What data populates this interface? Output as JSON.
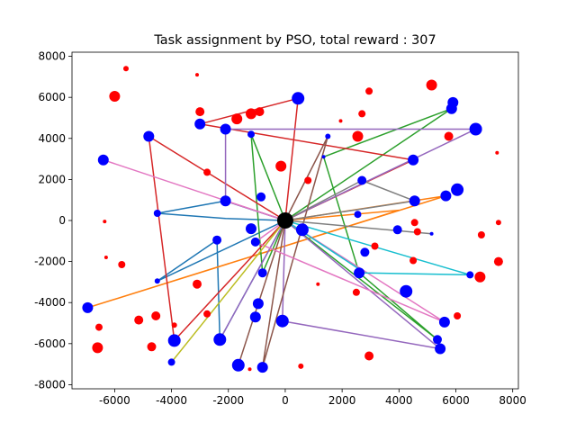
{
  "chart_data": {
    "type": "scatter",
    "title": "Task assignment by PSO, total reward : 307",
    "xlabel": "",
    "ylabel": "",
    "xlim": [
      -7500,
      8200
    ],
    "ylim": [
      -8200,
      8200
    ],
    "xticks": [
      -6000,
      -4000,
      -2000,
      0,
      2000,
      4000,
      6000,
      8000
    ],
    "yticks": [
      -8000,
      -6000,
      -4000,
      -2000,
      0,
      2000,
      4000,
      6000,
      8000
    ],
    "grid": false,
    "legend": "none",
    "depot": {
      "x": 0,
      "y": 0,
      "color": "#000000"
    },
    "series": [
      {
        "color": "#ff0000",
        "points": [
          {
            "x": -5600,
            "y": 7400,
            "r": 3
          },
          {
            "x": -6000,
            "y": 6050,
            "r": 6
          },
          {
            "x": -3100,
            "y": 7100,
            "r": 2
          },
          {
            "x": -3000,
            "y": 5300,
            "r": 5
          },
          {
            "x": -1700,
            "y": 4950,
            "r": 6
          },
          {
            "x": -1200,
            "y": 5200,
            "r": 6
          },
          {
            "x": -900,
            "y": 5300,
            "r": 5
          },
          {
            "x": 1950,
            "y": 4850,
            "r": 2
          },
          {
            "x": 2700,
            "y": 5200,
            "r": 4
          },
          {
            "x": 2950,
            "y": 6300,
            "r": 4
          },
          {
            "x": 5150,
            "y": 6600,
            "r": 6
          },
          {
            "x": 2550,
            "y": 4100,
            "r": 6
          },
          {
            "x": 5750,
            "y": 4100,
            "r": 5
          },
          {
            "x": 7450,
            "y": 3300,
            "r": 2
          },
          {
            "x": -2750,
            "y": 2350,
            "r": 4
          },
          {
            "x": -150,
            "y": 2650,
            "r": 6
          },
          {
            "x": 800,
            "y": 1950,
            "r": 4
          },
          {
            "x": -6350,
            "y": -50,
            "r": 2
          },
          {
            "x": -6300,
            "y": -1800,
            "r": 2
          },
          {
            "x": -5750,
            "y": -2150,
            "r": 4
          },
          {
            "x": -3100,
            "y": -3100,
            "r": 5
          },
          {
            "x": -2750,
            "y": -4550,
            "r": 4
          },
          {
            "x": -4550,
            "y": -4650,
            "r": 5
          },
          {
            "x": -5150,
            "y": -4850,
            "r": 5
          },
          {
            "x": -3900,
            "y": -5100,
            "r": 3
          },
          {
            "x": -6550,
            "y": -5200,
            "r": 4
          },
          {
            "x": -4700,
            "y": -6150,
            "r": 5
          },
          {
            "x": -6600,
            "y": -6200,
            "r": 6
          },
          {
            "x": 1150,
            "y": -3100,
            "r": 2
          },
          {
            "x": 2500,
            "y": -3500,
            "r": 4
          },
          {
            "x": 3150,
            "y": -1250,
            "r": 4
          },
          {
            "x": 4500,
            "y": -1950,
            "r": 4
          },
          {
            "x": 4550,
            "y": -100,
            "r": 4
          },
          {
            "x": 4650,
            "y": -550,
            "r": 4
          },
          {
            "x": 6900,
            "y": -700,
            "r": 4
          },
          {
            "x": 7500,
            "y": -100,
            "r": 3
          },
          {
            "x": 7500,
            "y": -2000,
            "r": 5
          },
          {
            "x": 6850,
            "y": -2750,
            "r": 6
          },
          {
            "x": 6050,
            "y": -4650,
            "r": 4
          },
          {
            "x": 550,
            "y": -7100,
            "r": 3
          },
          {
            "x": -1250,
            "y": -7250,
            "r": 2
          },
          {
            "x": 2950,
            "y": -6600,
            "r": 5
          }
        ]
      },
      {
        "color": "#0000ff",
        "points": [
          {
            "x": 450,
            "y": 5950,
            "r": 7
          },
          {
            "x": -3000,
            "y": 4700,
            "r": 6
          },
          {
            "x": -2100,
            "y": 4450,
            "r": 6
          },
          {
            "x": -1200,
            "y": 4200,
            "r": 4
          },
          {
            "x": 1500,
            "y": 4100,
            "r": 3
          },
          {
            "x": -4800,
            "y": 4100,
            "r": 6
          },
          {
            "x": -6400,
            "y": 2950,
            "r": 6
          },
          {
            "x": 1350,
            "y": 3100,
            "r": 2
          },
          {
            "x": 4500,
            "y": 2950,
            "r": 6
          },
          {
            "x": 5900,
            "y": 5750,
            "r": 6
          },
          {
            "x": 5850,
            "y": 5450,
            "r": 6
          },
          {
            "x": 6700,
            "y": 4450,
            "r": 7
          },
          {
            "x": 2700,
            "y": 1950,
            "r": 5
          },
          {
            "x": 4550,
            "y": 950,
            "r": 6
          },
          {
            "x": 5650,
            "y": 1200,
            "r": 6
          },
          {
            "x": 6050,
            "y": 1500,
            "r": 7
          },
          {
            "x": 2550,
            "y": 300,
            "r": 4
          },
          {
            "x": 3950,
            "y": -450,
            "r": 5
          },
          {
            "x": 5150,
            "y": -650,
            "r": 2
          },
          {
            "x": -850,
            "y": 1150,
            "r": 5
          },
          {
            "x": -2100,
            "y": 950,
            "r": 6
          },
          {
            "x": -4500,
            "y": 350,
            "r": 4
          },
          {
            "x": -1200,
            "y": -400,
            "r": 6
          },
          {
            "x": -2400,
            "y": -950,
            "r": 5
          },
          {
            "x": -1050,
            "y": -1050,
            "r": 5
          },
          {
            "x": 600,
            "y": -450,
            "r": 7
          },
          {
            "x": 2800,
            "y": -1550,
            "r": 5
          },
          {
            "x": 2600,
            "y": -2550,
            "r": 6
          },
          {
            "x": 4250,
            "y": -3450,
            "r": 7
          },
          {
            "x": 6500,
            "y": -2650,
            "r": 4
          },
          {
            "x": 5600,
            "y": -4950,
            "r": 6
          },
          {
            "x": 5350,
            "y": -5800,
            "r": 5
          },
          {
            "x": 5450,
            "y": -6250,
            "r": 6
          },
          {
            "x": -4500,
            "y": -2950,
            "r": 3
          },
          {
            "x": -800,
            "y": -2550,
            "r": 5
          },
          {
            "x": -950,
            "y": -4050,
            "r": 6
          },
          {
            "x": -1050,
            "y": -4700,
            "r": 6
          },
          {
            "x": -100,
            "y": -4900,
            "r": 7
          },
          {
            "x": -6950,
            "y": -4250,
            "r": 6
          },
          {
            "x": -3900,
            "y": -5850,
            "r": 7
          },
          {
            "x": -2300,
            "y": -5800,
            "r": 7
          },
          {
            "x": -4000,
            "y": -6900,
            "r": 4
          },
          {
            "x": -1650,
            "y": -7050,
            "r": 7
          },
          {
            "x": -800,
            "y": -7150,
            "r": 6
          }
        ]
      }
    ],
    "routes": [
      {
        "color": "#1f77b4",
        "x": [
          0,
          -2100,
          -4500,
          -2100,
          0,
          -4500,
          -2400,
          -2300,
          0
        ],
        "y": [
          0,
          950,
          350,
          100,
          0,
          -2950,
          -950,
          -5800,
          0
        ]
      },
      {
        "color": "#ff7f0e",
        "x": [
          0,
          5650,
          -6950,
          4000,
          0
        ],
        "y": [
          0,
          1200,
          -4250,
          500,
          0
        ]
      },
      {
        "color": "#2ca02c",
        "x": [
          0,
          -1200,
          -800,
          0,
          5850,
          1350,
          2600,
          5350,
          0
        ],
        "y": [
          0,
          4200,
          -2550,
          0,
          5450,
          3100,
          -2550,
          -5800,
          0
        ]
      },
      {
        "color": "#d62728",
        "x": [
          0,
          450,
          -3000,
          4500,
          0,
          -3900,
          -4800,
          0
        ],
        "y": [
          0,
          5950,
          4700,
          2950,
          0,
          -5850,
          4100,
          0
        ]
      },
      {
        "color": "#9467bd",
        "x": [
          0,
          -2100,
          -2100,
          6700,
          0,
          -100,
          5450,
          0,
          -2300,
          0
        ],
        "y": [
          0,
          950,
          4450,
          4450,
          0,
          -4900,
          -6250,
          0,
          -5800,
          0
        ]
      },
      {
        "color": "#8c564b",
        "x": [
          0,
          -800,
          1500,
          0,
          -1650,
          0
        ],
        "y": [
          0,
          -7150,
          4100,
          0,
          -7050,
          0
        ]
      },
      {
        "color": "#e377c2",
        "x": [
          0,
          -6400,
          0,
          -1050,
          5600,
          0
        ],
        "y": [
          0,
          2950,
          0,
          -1050,
          -4950,
          0
        ]
      },
      {
        "color": "#7f7f7f",
        "x": [
          0,
          5150,
          0,
          2700,
          4550,
          0
        ],
        "y": [
          0,
          -650,
          0,
          1950,
          950,
          0
        ]
      },
      {
        "color": "#bcbd22",
        "x": [
          0,
          -4000,
          0
        ],
        "y": [
          0,
          -6900,
          0
        ]
      },
      {
        "color": "#17becf",
        "x": [
          0,
          6500,
          2800,
          0
        ],
        "y": [
          0,
          -2650,
          -2550,
          0
        ]
      }
    ]
  }
}
